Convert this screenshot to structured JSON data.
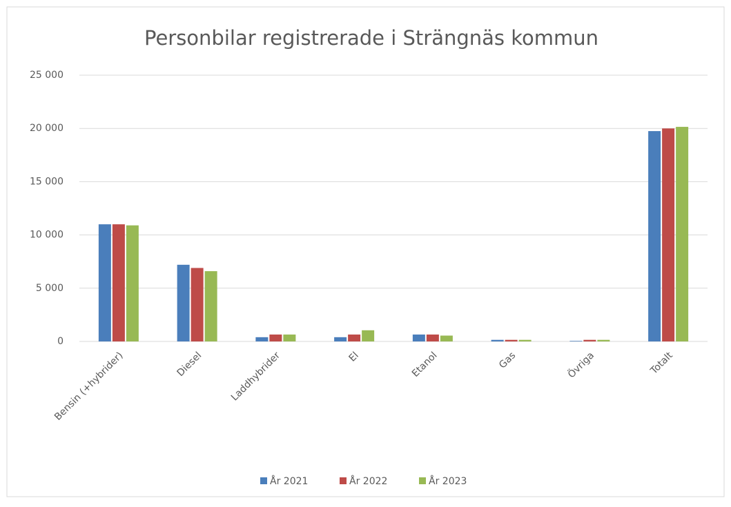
{
  "chart_data": {
    "type": "bar",
    "title": "Personbilar registrerade i Strängnäs kommun",
    "categories": [
      "Bensin (+hybrider)",
      "Diesel",
      "Laddhybrider",
      "El",
      "Etanol",
      "Gas",
      "Övriga",
      "Totalt"
    ],
    "series": [
      {
        "name": "År 2021",
        "color": "#4a7ebb",
        "values": [
          11000,
          7200,
          400,
          400,
          650,
          150,
          50,
          19750
        ]
      },
      {
        "name": "År 2022",
        "color": "#be4b48",
        "values": [
          11000,
          6900,
          650,
          650,
          650,
          150,
          150,
          20000
        ]
      },
      {
        "name": "År 2023",
        "color": "#98b954",
        "values": [
          10900,
          6600,
          650,
          1050,
          550,
          150,
          150,
          20150
        ]
      }
    ],
    "ylim": [
      0,
      25000
    ],
    "yticks": [
      0,
      {
        "value": 5000,
        "label": "5 000"
      },
      {
        "value": 10000,
        "label": "10 000"
      },
      {
        "value": 15000,
        "label": "15 000"
      },
      {
        "value": 20000,
        "label": "20 000"
      },
      {
        "value": 25000,
        "label": "25 000"
      }
    ],
    "grid": true,
    "legend": "bottom"
  }
}
